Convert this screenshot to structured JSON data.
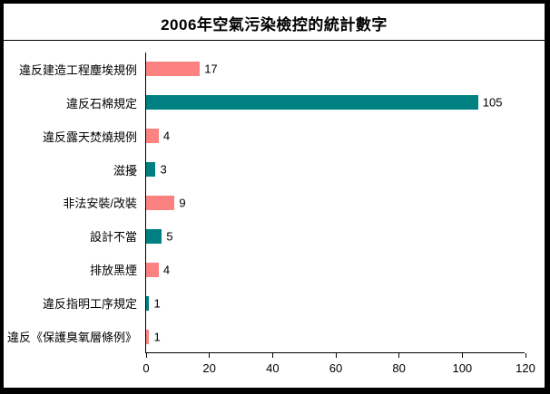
{
  "title": "2006年空氣污染檢控的統計數字",
  "chart_data": {
    "type": "bar",
    "orientation": "horizontal",
    "title": "2006年空氣污染檢控的統計數字",
    "categories": [
      "違反建造工程塵埃規例",
      "違反石棉規定",
      "違反露天焚燒規例",
      "滋擾",
      "非法安裝/改裝",
      "設計不當",
      "排放黑煙",
      "違反指明工序規定",
      "違反《保護臭氧層條例》"
    ],
    "values": [
      17,
      105,
      4,
      3,
      9,
      5,
      4,
      1,
      1
    ],
    "value_labels_shown": true,
    "xlabel": "",
    "ylabel": "",
    "xlim": [
      0,
      120
    ],
    "xticks": [
      0,
      20,
      40,
      60,
      80,
      100,
      120
    ],
    "grid": false,
    "legend": "none",
    "colors": {
      "odd_bar": "#FB8280",
      "even_bar": "#008080",
      "axis": "#000000",
      "frame_border": "#000000",
      "background": "#FFFFFF"
    }
  }
}
